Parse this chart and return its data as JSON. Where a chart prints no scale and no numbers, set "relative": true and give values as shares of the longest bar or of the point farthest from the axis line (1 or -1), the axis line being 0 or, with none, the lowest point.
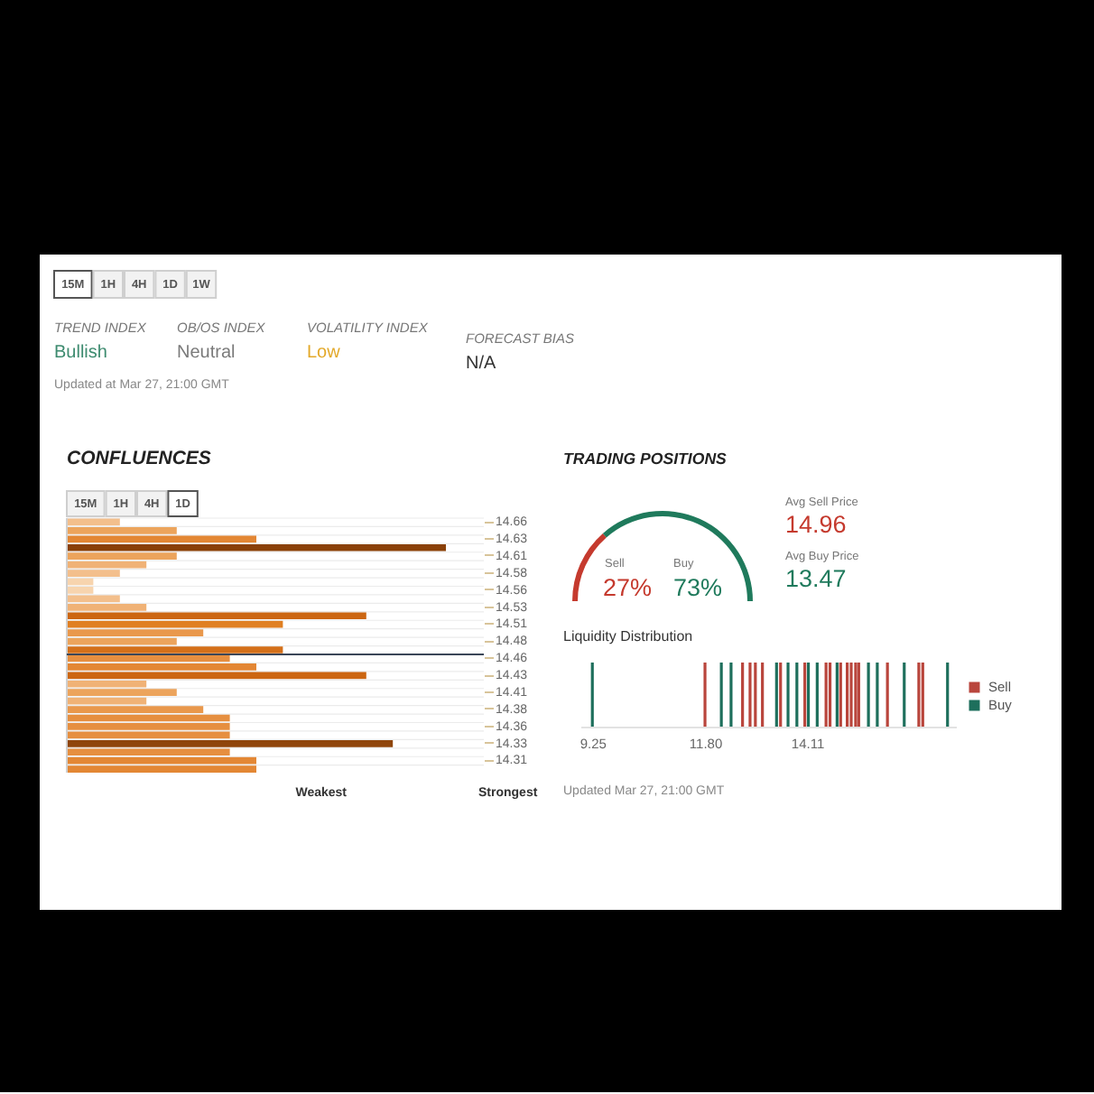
{
  "chart_data": [
    {
      "type": "other",
      "categories": [
        "15M",
        "1H",
        "4H",
        "1D",
        "1W"
      ],
      "annotations": [
        "TREND INDEX",
        "Bullish",
        "OB/OS INDEX",
        "Neutral",
        "VOLATILITY INDEX",
        "Low",
        "FORECAST BIAS",
        "N/A",
        "Updated at Mar 27, 21:00 GMT"
      ]
    },
    {
      "type": "bar",
      "orientation": "horizontal",
      "title": "CONFLUENCES",
      "relative": true,
      "grid": "y",
      "categories": [
        "14.66",
        null,
        "14.63",
        null,
        "14.61",
        null,
        "14.58",
        null,
        "14.56",
        null,
        "14.53",
        null,
        "14.51",
        null,
        "14.48",
        null,
        "14.46",
        null,
        "14.43",
        null,
        "14.41",
        null,
        "14.38",
        null,
        "14.36",
        null,
        "14.33",
        null,
        "14.31",
        null
      ],
      "values": [
        0.14,
        0.29,
        0.5,
        1,
        0.29,
        0.21,
        0.14,
        0.07,
        0.07,
        0.14,
        0.21,
        0.79,
        0.57,
        0.36,
        0.29,
        0.57,
        0.43,
        0.5,
        0.79,
        0.21,
        0.29,
        0.21,
        0.36,
        0.43,
        0.43,
        0.43,
        0.86,
        0.43,
        0.5,
        0.5
      ],
      "colors": [
        "#f3bf8c",
        "#eca45c",
        "#e38734",
        "#8a4008",
        "#eca45c",
        "#f0b276",
        "#f3bf8c",
        "#f7d4ae",
        "#f7d4ae",
        "#f3bf8c",
        "#f0b276",
        "#cc6612",
        "#e07f22",
        "#e9984c",
        "#eca45c",
        "#d4701a",
        "#e68f40",
        "#e38734",
        "#cc6612",
        "#f0b276",
        "#eca45c",
        "#f0b276",
        "#e9984c",
        "#e68f40",
        "#e68f40",
        "#e68f40",
        "#8f450b",
        "#e68f40",
        "#e38734",
        "#e38734"
      ],
      "ref_lines": [
        {
          "axis": "y",
          "value": "14.46",
          "color": "#3b4658"
        }
      ],
      "annotations": [
        "15M",
        "1H",
        "4H",
        "1D",
        "Weakest",
        "Strongest"
      ]
    },
    {
      "type": "donut",
      "title": "TRADING POSITIONS",
      "categories": [
        "Sell",
        "Buy"
      ],
      "values": [
        27,
        73
      ],
      "colors": [
        "#c53a2e",
        "#1f7a5c"
      ],
      "value_labels": [
        "27%",
        "73%"
      ],
      "annotations": [
        "Avg Sell Price",
        "14.96",
        "Avg Buy Price",
        "13.47"
      ]
    },
    {
      "type": "bar",
      "title": "Liquidity Distribution",
      "relative": true,
      "xlim": [
        9.0,
        17.5
      ],
      "xticks": [
        9.25,
        {
          "value": 11.8,
          "label": "11.80"
        },
        14.11
      ],
      "legend": "right",
      "series": [
        {
          "name": "Sell",
          "color": "#b9453c",
          "x": [
            11.8,
            12.65,
            12.82,
            12.94,
            13.1,
            13.51,
            14.06,
            14.54,
            14.63,
            14.87,
            15.02,
            15.11,
            15.21,
            15.28,
            15.93,
            16.64,
            16.73
          ],
          "values": [
            1,
            1,
            1,
            1,
            1,
            1,
            1,
            1,
            1,
            1,
            1,
            1,
            1,
            1,
            1,
            1,
            1
          ]
        },
        {
          "name": "Buy",
          "color": "#1e6f5c",
          "x": [
            9.25,
            12.17,
            12.39,
            13.42,
            13.68,
            13.88,
            14.14,
            14.34,
            14.79,
            15.5,
            15.7,
            16.31,
            17.29
          ],
          "values": [
            1,
            1,
            1,
            1,
            1,
            1,
            1,
            1,
            1,
            1,
            1,
            1,
            1
          ]
        }
      ],
      "annotations": [
        "Updated Mar 27, 21:00 GMT"
      ]
    }
  ]
}
